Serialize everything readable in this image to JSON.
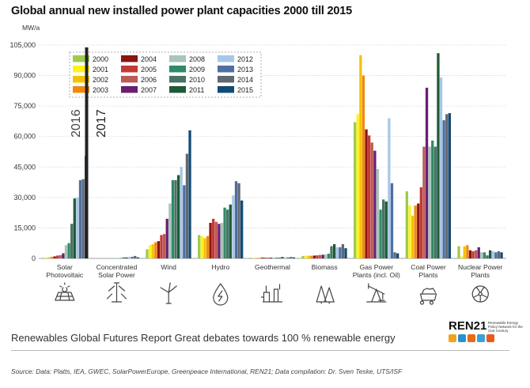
{
  "title": "Global annual new installed power plant capacities 2000 till 2015",
  "footer": "Renewables Global Futures Report Great debates towards 100 % renewable energy",
  "source": "Source: Data: Platts, IEA, GWEC, SolarPowerEurope, Greenpeace International, REN21; Data compilation: Dr. Sven Teske, UTS/ISF",
  "logo": {
    "name": "REN21",
    "tagline": "Renewable Energy Policy Network for the 21st Century"
  },
  "annotations": [
    "2016",
    "2017"
  ],
  "category_icons": [
    "solar-panel-icon",
    "csp-tower-icon",
    "wind-turbine-icon",
    "hydro-drop-icon",
    "geothermal-plant-icon",
    "biomass-trees-icon",
    "oil-pump-icon",
    "coal-cart-icon",
    "nuclear-icon"
  ],
  "chart_data": {
    "type": "bar",
    "ylabel": "MW/a",
    "ylim": [
      0,
      105000
    ],
    "yticks": [
      "0",
      "15,000",
      "30,000",
      "45,000",
      "60,000",
      "75,000",
      "90,000",
      "105,000"
    ],
    "legend_position": "top-left",
    "categories": [
      "Solar\nPhotovoltaic",
      "Concentrated\nSolar Power",
      "Wind",
      "Hydro",
      "Geothermal",
      "Biomass",
      "Gas Power\nPlants (incl. Oil)",
      "Coal Power\nPlants",
      "Nuclear Power\nPlants"
    ],
    "series": [
      {
        "name": "2000",
        "color": "#9ccc4a",
        "values": [
          300,
          0,
          4500,
          11500,
          300,
          1200,
          67000,
          33000,
          6000
        ]
      },
      {
        "name": "2001",
        "color": "#fff21a",
        "values": [
          400,
          0,
          6500,
          11000,
          300,
          1300,
          71000,
          26000,
          1000
        ]
      },
      {
        "name": "2002",
        "color": "#f5c200",
        "values": [
          500,
          0,
          7000,
          10000,
          300,
          1300,
          100000,
          21000,
          6000
        ]
      },
      {
        "name": "2003",
        "color": "#ee8a12",
        "values": [
          800,
          0,
          8000,
          11000,
          300,
          1300,
          90000,
          26000,
          6500
        ]
      },
      {
        "name": "2004",
        "color": "#8b1414",
        "values": [
          1000,
          0,
          8500,
          17500,
          400,
          1400,
          63500,
          27000,
          4000
        ]
      },
      {
        "name": "2005",
        "color": "#c23a33",
        "values": [
          1400,
          0,
          11500,
          19500,
          400,
          1500,
          60500,
          35000,
          3500
        ]
      },
      {
        "name": "2006",
        "color": "#b85c57",
        "values": [
          1600,
          0,
          12000,
          18000,
          400,
          1700,
          57000,
          55000,
          4000
        ]
      },
      {
        "name": "2007",
        "color": "#6a1e72",
        "values": [
          2500,
          0,
          19500,
          17000,
          400,
          1800,
          53000,
          84000,
          5500
        ]
      },
      {
        "name": "2008",
        "color": "#a7c5b8",
        "values": [
          6500,
          100,
          27000,
          17500,
          400,
          2000,
          44000,
          55000,
          3000
        ]
      },
      {
        "name": "2009",
        "color": "#2e8a67",
        "values": [
          7500,
          200,
          38500,
          25000,
          400,
          2300,
          24000,
          58000,
          3000
        ]
      },
      {
        "name": "2010",
        "color": "#4a7364",
        "values": [
          17000,
          500,
          38500,
          24000,
          400,
          6000,
          29000,
          55000,
          1500
        ]
      },
      {
        "name": "2011",
        "color": "#1f5b36",
        "values": [
          29500,
          500,
          41000,
          26500,
          700,
          7000,
          28000,
          101000,
          4000
        ]
      },
      {
        "name": "2012",
        "color": "#a8c7e6",
        "values": [
          30000,
          800,
          45000,
          31000,
          600,
          5500,
          69000,
          89000,
          3500
        ]
      },
      {
        "name": "2013",
        "color": "#4d6fa3",
        "values": [
          38500,
          800,
          36000,
          38000,
          500,
          5500,
          37000,
          68000,
          3000
        ]
      },
      {
        "name": "2014",
        "color": "#616870",
        "values": [
          39000,
          1200,
          51500,
          37000,
          700,
          7000,
          3000,
          71000,
          3500
        ]
      },
      {
        "name": "2015",
        "color": "#134b75",
        "values": [
          50500,
          500,
          63000,
          28500,
          500,
          5000,
          2500,
          71500,
          3000
        ]
      }
    ]
  }
}
